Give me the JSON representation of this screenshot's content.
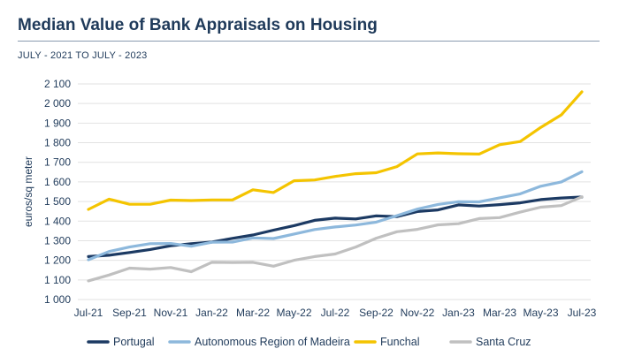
{
  "title": "Median Value of Bank Appraisals on Housing",
  "subtitle": "JULY - 2021 TO JULY  - 2023",
  "chart_data": {
    "type": "line",
    "title": "Median Value of Bank Appraisals on Housing",
    "subtitle": "JULY - 2021 TO JULY  - 2023",
    "xlabel": "",
    "ylabel": "euros/sq meter",
    "ylim": [
      1000,
      2100
    ],
    "yticks": [
      1000,
      1100,
      1200,
      1300,
      1400,
      1500,
      1600,
      1700,
      1800,
      1900,
      2000,
      2100
    ],
    "ytick_labels": [
      "1 000",
      "1 100",
      "1 200",
      "1 300",
      "1 400",
      "1 500",
      "1 600",
      "1 700",
      "1 800",
      "1 900",
      "2 000",
      "2 100"
    ],
    "x": [
      "Jul-21",
      "Aug-21",
      "Sep-21",
      "Oct-21",
      "Nov-21",
      "Dec-21",
      "Jan-22",
      "Feb-22",
      "Mar-22",
      "Apr-22",
      "May-22",
      "Jun-22",
      "Jul-22",
      "Aug-22",
      "Sep-22",
      "Oct-22",
      "Nov-22",
      "Dec-22",
      "Jan-23",
      "Feb-23",
      "Mar-23",
      "Apr-23",
      "May-23",
      "Jun-23",
      "Jul-23"
    ],
    "xtick_labels": [
      "Jul-21",
      "Sep-21",
      "Nov-21",
      "Jan-22",
      "Mar-22",
      "May-22",
      "Jul-22",
      "Sep-22",
      "Nov-22",
      "Jan-23",
      "Mar-23",
      "May-23",
      "Jul-23"
    ],
    "grid": true,
    "legend": "bottom",
    "series": [
      {
        "name": "Portugal",
        "color": "#1c3a63",
        "values": [
          1219,
          1226,
          1240,
          1255,
          1274,
          1285,
          1293,
          1312,
          1329,
          1354,
          1377,
          1404,
          1415,
          1411,
          1427,
          1423,
          1449,
          1457,
          1483,
          1477,
          1484,
          1493,
          1510,
          1518,
          1523
        ]
      },
      {
        "name": "Autonomous Region of Madeira",
        "color": "#8db8dc",
        "values": [
          1203,
          1245,
          1268,
          1285,
          1286,
          1272,
          1292,
          1293,
          1314,
          1311,
          1334,
          1357,
          1370,
          1380,
          1395,
          1428,
          1461,
          1485,
          1499,
          1498,
          1519,
          1539,
          1578,
          1600,
          1652
        ]
      },
      {
        "name": "Funchal",
        "color": "#f4c400",
        "values": [
          1460,
          1512,
          1486,
          1486,
          1507,
          1505,
          1508,
          1508,
          1560,
          1546,
          1606,
          1610,
          1628,
          1642,
          1647,
          1678,
          1743,
          1748,
          1744,
          1742,
          1790,
          1806,
          1878,
          1942,
          2060
        ]
      },
      {
        "name": "Santa Cruz",
        "color": "#c0c0c0",
        "values": [
          1095,
          1125,
          1160,
          1155,
          1163,
          1142,
          1190,
          1189,
          1190,
          1170,
          1200,
          1219,
          1232,
          1268,
          1313,
          1346,
          1358,
          1381,
          1387,
          1413,
          1418,
          1446,
          1471,
          1479,
          1524
        ]
      }
    ]
  }
}
